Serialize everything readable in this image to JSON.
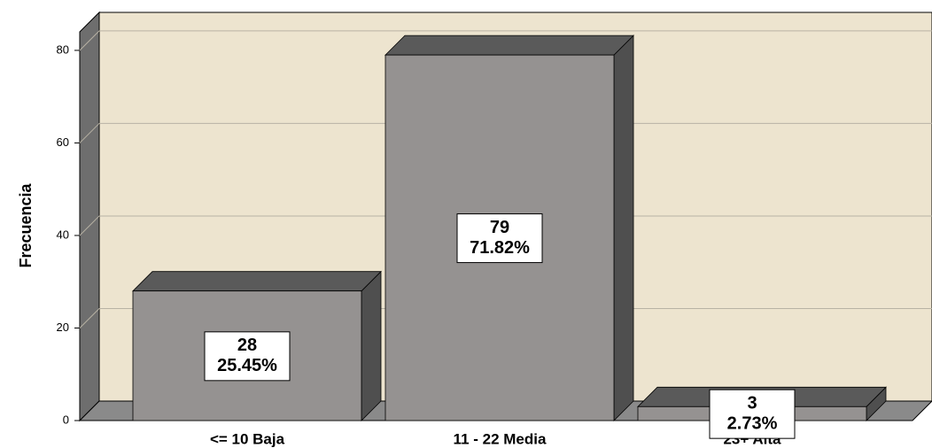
{
  "chart_data": {
    "type": "bar3d",
    "y_label": "Frecuencia",
    "categories": [
      "<= 10  Baja",
      "11 - 22  Media",
      "23+  Alta"
    ],
    "values": [
      28,
      79,
      3
    ],
    "percent_labels": [
      "25.45%",
      "71.82%",
      "2.73%"
    ],
    "color": "#959291",
    "ylim": [
      0,
      84
    ],
    "yticks": [
      0,
      20,
      40,
      60,
      80
    ],
    "grid": true
  }
}
